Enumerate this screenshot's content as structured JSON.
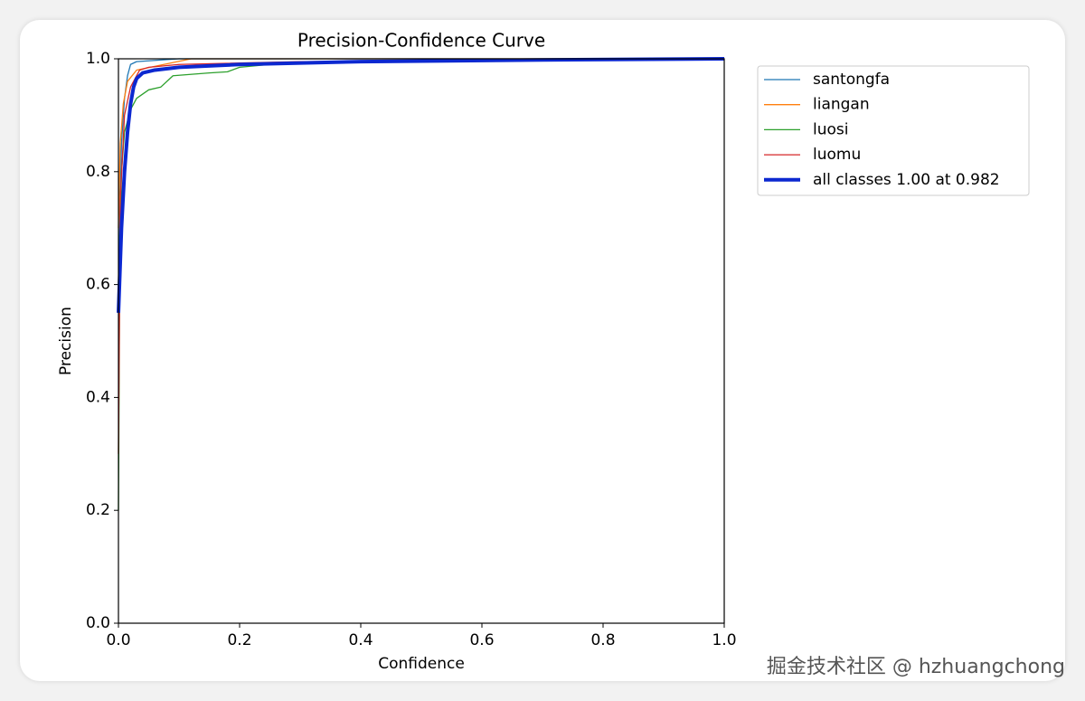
{
  "chart_data": {
    "type": "line",
    "title": "Precision-Confidence Curve",
    "x_label": "Confidence",
    "y_label": "Precision",
    "xlim": [
      0,
      1
    ],
    "ylim": [
      0,
      1
    ],
    "xticks": [
      {
        "value": 0,
        "label": "0.0"
      },
      0.2,
      0.4,
      0.6,
      0.8,
      {
        "value": 1,
        "label": "1.0"
      }
    ],
    "yticks": [
      {
        "value": 0,
        "label": "0.0"
      },
      0.2,
      0.4,
      0.6,
      0.8,
      {
        "value": 1,
        "label": "1.0"
      }
    ],
    "legend": "upper right outside",
    "series": [
      {
        "name": "santongfa",
        "color": "#1f77b4",
        "width": 1.3,
        "x": [
          0,
          0.005,
          0.01,
          0.015,
          0.02,
          0.03,
          0.1,
          1.0
        ],
        "values": [
          0.6,
          0.85,
          0.93,
          0.97,
          0.99,
          0.995,
          1.0,
          1.0
        ]
      },
      {
        "name": "liangan",
        "color": "#ff7f0e",
        "width": 1.3,
        "x": [
          0,
          0.003,
          0.008,
          0.015,
          0.03,
          0.12,
          1.0
        ],
        "values": [
          0.7,
          0.85,
          0.92,
          0.96,
          0.98,
          1.0,
          1.0
        ]
      },
      {
        "name": "luosi",
        "color": "#2ca02c",
        "width": 1.3,
        "x": [
          0,
          0.002,
          0.005,
          0.01,
          0.02,
          0.03,
          0.05,
          0.07,
          0.09,
          0.15,
          0.18,
          0.2,
          0.25,
          0.4,
          0.6,
          1.0
        ],
        "values": [
          0.2,
          0.6,
          0.8,
          0.87,
          0.91,
          0.93,
          0.945,
          0.95,
          0.97,
          0.975,
          0.977,
          0.985,
          0.99,
          0.995,
          0.998,
          1.0
        ]
      },
      {
        "name": "luomu",
        "color": "#d62728",
        "width": 1.3,
        "x": [
          0,
          0.003,
          0.01,
          0.02,
          0.035,
          0.05,
          0.1,
          0.3,
          1.0
        ],
        "values": [
          0.3,
          0.75,
          0.9,
          0.95,
          0.98,
          0.985,
          0.99,
          0.995,
          1.0
        ]
      },
      {
        "name": "all classes 1.00 at 0.982",
        "color": "#0c28d0",
        "width": 4,
        "x": [
          0,
          0.005,
          0.01,
          0.015,
          0.02,
          0.025,
          0.03,
          0.04,
          0.06,
          0.1,
          0.2,
          0.4,
          0.7,
          1.0
        ],
        "values": [
          0.55,
          0.7,
          0.8,
          0.87,
          0.92,
          0.95,
          0.965,
          0.975,
          0.98,
          0.985,
          0.99,
          0.995,
          0.998,
          1.0
        ]
      }
    ]
  },
  "watermark": "掘金技术社区 @ hzhuangchong"
}
